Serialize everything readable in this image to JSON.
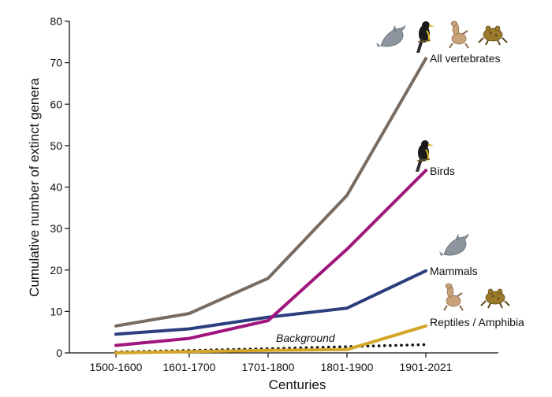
{
  "chart_data": {
    "type": "line",
    "xlabel": "Centuries",
    "ylabel": "Cumulative number of extinct genera",
    "categories": [
      "1500-1600",
      "1601-1700",
      "1701-1800",
      "1801-1900",
      "1901-2021"
    ],
    "ylim": [
      0,
      80
    ],
    "yticks": [
      0,
      10,
      20,
      30,
      40,
      50,
      60,
      70,
      80
    ],
    "grid": false,
    "legend": "inline labels at line ends",
    "series": [
      {
        "name": "All vertebrates",
        "values": [
          6.5,
          9.5,
          18,
          38,
          71
        ],
        "color": "#7a6b60",
        "style": "solid",
        "icons": [
          "dolphin-icon",
          "bird-icon",
          "reptile-icon",
          "frog-icon"
        ]
      },
      {
        "name": "Birds",
        "values": [
          1.8,
          3.5,
          7.8,
          25,
          44
        ],
        "color": "#a0157e",
        "style": "solid",
        "icons": [
          "bird-icon"
        ]
      },
      {
        "name": "Mammals",
        "values": [
          4.5,
          5.8,
          8.6,
          10.8,
          19.8
        ],
        "color": "#2c3e7e",
        "style": "solid",
        "icons": [
          "dolphin-icon"
        ]
      },
      {
        "name": "Reptiles / Amphibia",
        "values": [
          0,
          0.3,
          0.6,
          0.8,
          6.5
        ],
        "color": "#d4a62a",
        "style": "solid",
        "icons": [
          "reptile-icon",
          "frog-icon"
        ]
      },
      {
        "name": "Background",
        "values": [
          0.2,
          0.6,
          1.0,
          1.5,
          2.0
        ],
        "color": "#111111",
        "style": "dotted"
      }
    ]
  }
}
